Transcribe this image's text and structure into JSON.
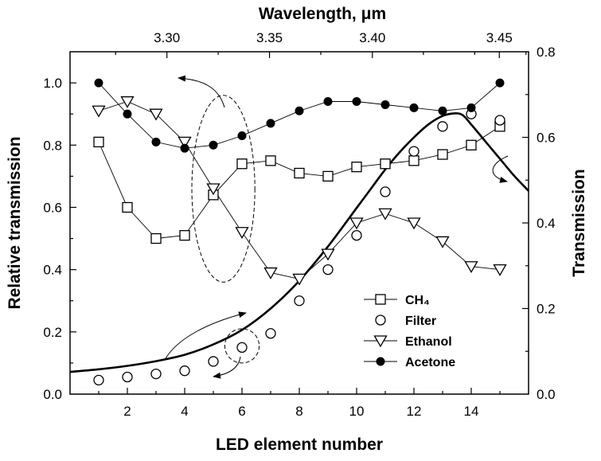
{
  "chart_data": {
    "type": "line",
    "x_bottom": {
      "label": "LED element number",
      "range": [
        0,
        16
      ],
      "ticks": [
        2,
        4,
        6,
        8,
        10,
        12,
        14
      ]
    },
    "x_top": {
      "label": "Wavelength, μm",
      "ticks": [
        "3.30",
        "3.35",
        "3.40",
        "3.45"
      ],
      "tick_positions_led": [
        3.38,
        6.96,
        10.55,
        14.98
      ]
    },
    "y_left": {
      "label": "Relative transmission",
      "range": [
        0.0,
        1.1
      ],
      "ticks": [
        "0.0",
        "0.2",
        "0.4",
        "0.6",
        "0.8",
        "1.0"
      ]
    },
    "y_right": {
      "label": "Transmission",
      "range": [
        0.0,
        0.8
      ],
      "ticks": [
        "0.0",
        "0.2",
        "0.4",
        "0.6",
        "0.8"
      ]
    },
    "legend_position": "bottom-right",
    "series": [
      {
        "name": "CH₄",
        "axis": "left",
        "marker": "open-square",
        "connected": true,
        "x": [
          1,
          2,
          3,
          4,
          5,
          6,
          7,
          8,
          9,
          10,
          11,
          12,
          13,
          14,
          15
        ],
        "y": [
          0.81,
          0.6,
          0.5,
          0.51,
          0.64,
          0.74,
          0.75,
          0.71,
          0.7,
          0.73,
          0.74,
          0.75,
          0.77,
          0.8,
          0.86
        ]
      },
      {
        "name": "Filter",
        "axis": "left",
        "marker": "open-circle",
        "connected": false,
        "x": [
          1,
          2,
          3,
          4,
          5,
          6,
          7,
          8,
          9,
          10,
          11,
          12,
          13,
          14,
          15
        ],
        "y": [
          0.045,
          0.055,
          0.065,
          0.075,
          0.105,
          0.15,
          0.195,
          0.3,
          0.4,
          0.51,
          0.65,
          0.78,
          0.86,
          0.9,
          0.88
        ]
      },
      {
        "name": "Ethanol",
        "axis": "left",
        "marker": "open-triangle-down",
        "connected": true,
        "x": [
          1,
          2,
          3,
          4,
          5,
          6,
          7,
          8,
          9,
          10,
          11,
          12,
          13,
          14,
          15
        ],
        "y": [
          0.91,
          0.94,
          0.9,
          0.81,
          0.66,
          0.52,
          0.39,
          0.37,
          0.45,
          0.55,
          0.58,
          0.55,
          0.49,
          0.41,
          0.4
        ]
      },
      {
        "name": "Acetone",
        "axis": "left",
        "marker": "filled-circle",
        "connected": true,
        "x": [
          1,
          2,
          3,
          4,
          5,
          6,
          7,
          8,
          9,
          10,
          11,
          12,
          13,
          14,
          15
        ],
        "y": [
          1.0,
          0.9,
          0.81,
          0.79,
          0.8,
          0.83,
          0.87,
          0.91,
          0.94,
          0.94,
          0.93,
          0.92,
          0.91,
          0.92,
          1.0
        ]
      },
      {
        "axis": "right",
        "style": "thick-line",
        "x": [
          0,
          1,
          2,
          3,
          4,
          5,
          6,
          7,
          8,
          9,
          10,
          10.5,
          11,
          11.5,
          12,
          12.5,
          13,
          13.4,
          13.7,
          14,
          14.5,
          15,
          15.5,
          16
        ],
        "y": [
          0.052,
          0.058,
          0.066,
          0.077,
          0.092,
          0.116,
          0.15,
          0.2,
          0.265,
          0.345,
          0.435,
          0.48,
          0.525,
          0.565,
          0.6,
          0.63,
          0.65,
          0.656,
          0.652,
          0.63,
          0.59,
          0.55,
          0.51,
          0.475
        ]
      }
    ],
    "annotations": [
      {
        "kind": "dashed-ellipse",
        "center": [
          5.35,
          0.66
        ],
        "rx_units": 1.1,
        "ry_units": 0.3
      },
      {
        "kind": "dashed-ellipse",
        "center": [
          6.0,
          0.155
        ],
        "rx_units": 0.6,
        "ry_units": 0.055
      }
    ]
  }
}
